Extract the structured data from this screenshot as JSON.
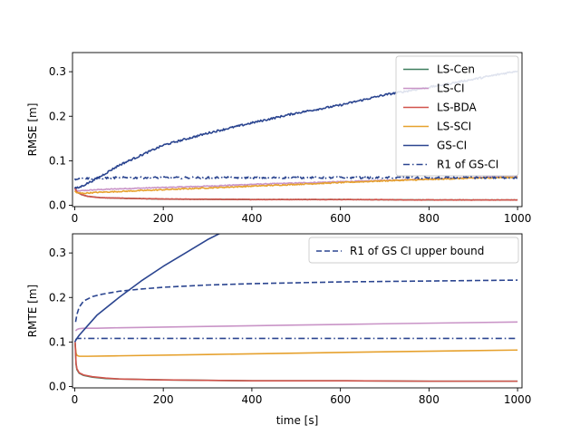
{
  "chart_data": [
    {
      "type": "line",
      "title": "",
      "xlabel": "",
      "ylabel": "RMSE [m]",
      "xlim": [
        -5,
        1010
      ],
      "ylim": [
        -0.003,
        0.343
      ],
      "xticks": [
        0,
        200,
        400,
        600,
        800,
        1000
      ],
      "xtick_labels": [
        "0",
        "200",
        "400",
        "600",
        "800",
        "1000"
      ],
      "yticks": [
        0.0,
        0.1,
        0.2,
        0.3
      ],
      "ytick_labels": [
        "0.0",
        "0.1",
        "0.2",
        "0.3"
      ],
      "grid": false,
      "legend_position": "top-right",
      "series": [
        {
          "name": "LS-Cen",
          "color": "#3f7f5f",
          "style": "solid",
          "noise": 0,
          "x": [
            0,
            5,
            15,
            30,
            60,
            100,
            200,
            400,
            600,
            800,
            1000
          ],
          "y": [
            0.04,
            0.03,
            0.024,
            0.02,
            0.017,
            0.016,
            0.014,
            0.013,
            0.013,
            0.012,
            0.012
          ]
        },
        {
          "name": "LS-CI",
          "color": "#c994c7",
          "style": "solid",
          "noise": 0.001,
          "x": [
            0,
            5,
            20,
            50,
            100,
            200,
            300,
            400,
            500,
            600,
            700,
            800,
            900,
            1000
          ],
          "y": [
            0.035,
            0.032,
            0.033,
            0.035,
            0.037,
            0.04,
            0.043,
            0.047,
            0.05,
            0.053,
            0.056,
            0.059,
            0.062,
            0.066
          ]
        },
        {
          "name": "LS-BDA",
          "color": "#d1534b",
          "style": "solid",
          "noise": 0.0006,
          "x": [
            0,
            5,
            15,
            30,
            60,
            100,
            200,
            400,
            600,
            800,
            1000
          ],
          "y": [
            0.04,
            0.03,
            0.024,
            0.02,
            0.017,
            0.016,
            0.014,
            0.013,
            0.013,
            0.012,
            0.012
          ]
        },
        {
          "name": "LS-SCI",
          "color": "#e6a12d",
          "style": "solid",
          "noise": 0.0012,
          "x": [
            0,
            5,
            20,
            50,
            100,
            200,
            300,
            400,
            500,
            600,
            700,
            800,
            900,
            1000
          ],
          "y": [
            0.032,
            0.028,
            0.027,
            0.029,
            0.031,
            0.035,
            0.039,
            0.043,
            0.047,
            0.051,
            0.055,
            0.058,
            0.061,
            0.063
          ]
        },
        {
          "name": "GS-CI",
          "color": "#2b4590",
          "style": "solid",
          "noise": 0.0022,
          "x": [
            0,
            10,
            50,
            100,
            200,
            300,
            400,
            500,
            600,
            700,
            800,
            900,
            1000
          ],
          "y": [
            0.038,
            0.04,
            0.06,
            0.09,
            0.135,
            0.162,
            0.185,
            0.207,
            0.225,
            0.248,
            0.265,
            0.283,
            0.302
          ]
        },
        {
          "name": "R1 of GS-CI",
          "color": "#2b4590",
          "style": "dashdot",
          "noise": 0.0022,
          "x": [
            0,
            5,
            100,
            300,
            500,
            700,
            900,
            1000
          ],
          "y": [
            0.058,
            0.06,
            0.062,
            0.062,
            0.062,
            0.062,
            0.062,
            0.062
          ]
        }
      ]
    },
    {
      "type": "line",
      "title": "",
      "xlabel": "time [s]",
      "ylabel": "RMTE [m]",
      "xlim": [
        -5,
        1010
      ],
      "ylim": [
        -0.003,
        0.343
      ],
      "xticks": [
        0,
        200,
        400,
        600,
        800,
        1000
      ],
      "xtick_labels": [
        "0",
        "200",
        "400",
        "600",
        "800",
        "1000"
      ],
      "yticks": [
        0.0,
        0.1,
        0.2,
        0.3
      ],
      "ytick_labels": [
        "0.0",
        "0.1",
        "0.2",
        "0.3"
      ],
      "grid": false,
      "legend_position": "top-right",
      "series": [
        {
          "name": "R1 of GS CI upper bound",
          "color": "#2b4590",
          "style": "dashed",
          "legend": true,
          "x": [
            2,
            5,
            10,
            20,
            40,
            60,
            100,
            150,
            200,
            300,
            400,
            500,
            600,
            700,
            800,
            900,
            1000
          ],
          "y": [
            0.145,
            0.162,
            0.178,
            0.192,
            0.202,
            0.207,
            0.214,
            0.219,
            0.223,
            0.228,
            0.231,
            0.233,
            0.235,
            0.236,
            0.237,
            0.238,
            0.239
          ]
        },
        {
          "name": "",
          "color": "#2b4590",
          "style": "dashdot",
          "legend": false,
          "x": [
            2,
            5,
            10,
            30,
            100,
            500,
            1000
          ],
          "y": [
            0.105,
            0.108,
            0.108,
            0.108,
            0.108,
            0.108,
            0.108
          ]
        },
        {
          "name": "",
          "color": "#c994c7",
          "style": "solid",
          "legend": false,
          "x": [
            2,
            5,
            10,
            20,
            50,
            100,
            300,
            500,
            700,
            1000
          ],
          "y": [
            0.125,
            0.128,
            0.13,
            0.131,
            0.131,
            0.132,
            0.135,
            0.138,
            0.141,
            0.145
          ]
        },
        {
          "name": "",
          "color": "#e6a12d",
          "style": "solid",
          "legend": false,
          "x": [
            1,
            3,
            5,
            10,
            30,
            100,
            300,
            500,
            700,
            1000
          ],
          "y": [
            0.095,
            0.075,
            0.07,
            0.068,
            0.068,
            0.069,
            0.072,
            0.075,
            0.078,
            0.082
          ]
        },
        {
          "name": "",
          "color": "#3f7f5f",
          "style": "solid",
          "legend": false,
          "x": [
            1,
            3,
            5,
            10,
            20,
            40,
            70,
            100,
            150,
            200,
            300,
            400,
            600,
            800,
            1000
          ],
          "y": [
            0.098,
            0.05,
            0.038,
            0.03,
            0.025,
            0.021,
            0.018,
            0.017,
            0.016,
            0.015,
            0.014,
            0.013,
            0.013,
            0.012,
            0.012
          ]
        },
        {
          "name": "",
          "color": "#d1534b",
          "style": "solid",
          "legend": false,
          "x": [
            1,
            3,
            5,
            10,
            20,
            40,
            70,
            100,
            150,
            200,
            300,
            400,
            600,
            800,
            1000
          ],
          "y": [
            0.1,
            0.052,
            0.04,
            0.031,
            0.026,
            0.022,
            0.019,
            0.017,
            0.016,
            0.015,
            0.014,
            0.013,
            0.013,
            0.012,
            0.012
          ]
        },
        {
          "name": "",
          "color": "#2b4590",
          "style": "solid",
          "legend": false,
          "x": [
            0,
            5,
            10,
            25,
            50,
            100,
            150,
            200,
            250,
            300,
            330
          ],
          "y": [
            0.1,
            0.108,
            0.115,
            0.132,
            0.16,
            0.2,
            0.237,
            0.27,
            0.3,
            0.33,
            0.345
          ]
        }
      ]
    }
  ]
}
